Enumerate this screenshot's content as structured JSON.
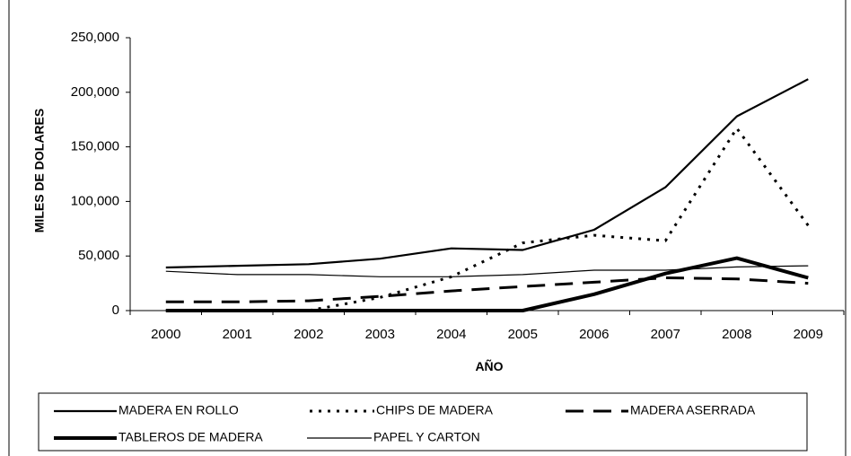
{
  "chart_data": {
    "type": "line",
    "title": "",
    "xlabel": "AÑO",
    "ylabel": "MILES DE DOLARES",
    "categories": [
      "2000",
      "2001",
      "2002",
      "2003",
      "2004",
      "2005",
      "2006",
      "2007",
      "2008",
      "2009"
    ],
    "ylim": [
      0,
      250000
    ],
    "y_ticks": [
      "0",
      "50,000",
      "100,000",
      "150,000",
      "200,000",
      "250,000"
    ],
    "grid": false,
    "legend_position": "bottom",
    "series": [
      {
        "name": "MADERA EN ROLLO",
        "style": "solid-medium",
        "color": "#000000",
        "values": [
          39500,
          41000,
          42500,
          47500,
          57000,
          55500,
          74000,
          113000,
          178000,
          212000
        ]
      },
      {
        "name": "CHIPS DE MADERA",
        "style": "dotted",
        "color": "#000000",
        "values": [
          0,
          0,
          0,
          12000,
          31000,
          62000,
          69000,
          64000,
          167000,
          78000
        ]
      },
      {
        "name": "MADERA ASERRADA",
        "style": "long-dash",
        "color": "#000000",
        "values": [
          8000,
          8000,
          9000,
          13000,
          18000,
          22000,
          26000,
          30000,
          29000,
          25000
        ]
      },
      {
        "name": "TABLEROS DE MADERA",
        "style": "solid-thick",
        "color": "#000000",
        "values": [
          0,
          0,
          0,
          0,
          0,
          0,
          15000,
          34000,
          48000,
          30000
        ]
      },
      {
        "name": "PAPEL Y CARTON",
        "style": "solid-thin",
        "color": "#000000",
        "values": [
          36000,
          33000,
          33000,
          31000,
          31000,
          33000,
          37000,
          37000,
          40000,
          41000
        ]
      }
    ]
  }
}
